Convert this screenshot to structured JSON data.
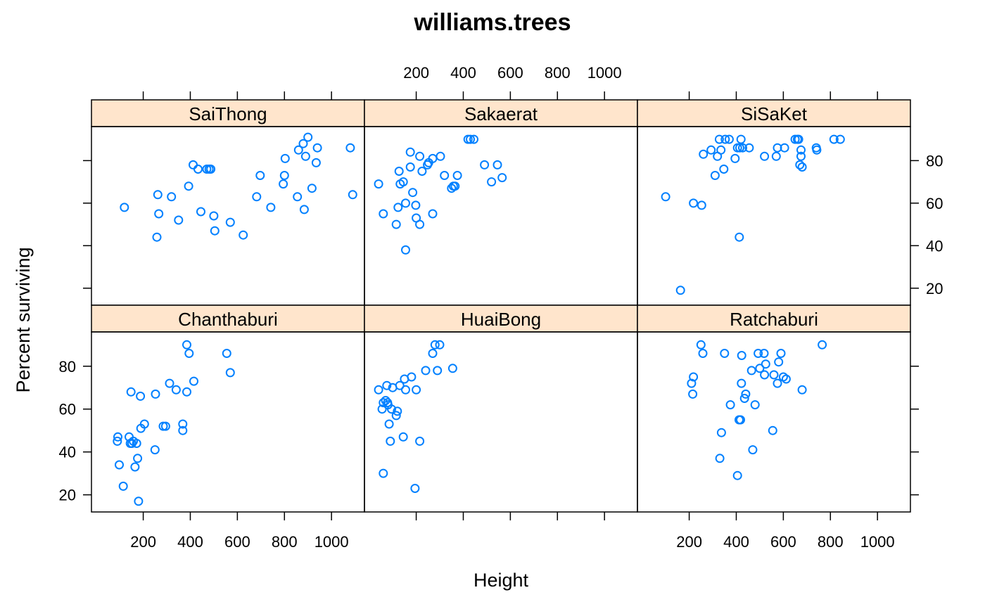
{
  "colors": {
    "point": "#0080ff",
    "strip": "#ffe5cc",
    "frame": "#000000"
  },
  "chart_data": {
    "type": "scatter",
    "title": "williams.trees",
    "xlabel": "Height",
    "ylabel": "Percent surviving",
    "xlim": [
      -20,
      1140
    ],
    "ylim": [
      12,
      96
    ],
    "xticks": [
      200,
      400,
      600,
      800,
      1000
    ],
    "yticks": [
      20,
      40,
      60,
      80
    ],
    "panels": [
      {
        "name": "SaiThong",
        "points": [
          [
            120,
            58
          ],
          [
            258,
            44
          ],
          [
            262,
            64
          ],
          [
            266,
            55
          ],
          [
            320,
            63
          ],
          [
            350,
            52
          ],
          [
            393,
            68
          ],
          [
            412,
            78
          ],
          [
            433,
            76
          ],
          [
            445,
            56
          ],
          [
            470,
            76
          ],
          [
            480,
            76
          ],
          [
            487,
            76
          ],
          [
            500,
            54
          ],
          [
            504,
            47
          ],
          [
            570,
            51
          ],
          [
            625,
            45
          ],
          [
            682,
            63
          ],
          [
            697,
            73
          ],
          [
            742,
            58
          ],
          [
            795,
            69
          ],
          [
            800,
            73
          ],
          [
            803,
            81
          ],
          [
            855,
            63
          ],
          [
            860,
            85
          ],
          [
            880,
            88
          ],
          [
            884,
            57
          ],
          [
            890,
            82
          ],
          [
            900,
            91
          ],
          [
            917,
            67
          ],
          [
            935,
            79
          ],
          [
            940,
            86
          ],
          [
            1080,
            86
          ],
          [
            1090,
            64
          ]
        ]
      },
      {
        "name": "Sakaerat",
        "points": [
          [
            40,
            69
          ],
          [
            60,
            55
          ],
          [
            115,
            50
          ],
          [
            123,
            58
          ],
          [
            127,
            75
          ],
          [
            132,
            69
          ],
          [
            145,
            70
          ],
          [
            155,
            60
          ],
          [
            155,
            38
          ],
          [
            175,
            77
          ],
          [
            175,
            84
          ],
          [
            185,
            65
          ],
          [
            198,
            59
          ],
          [
            200,
            53
          ],
          [
            215,
            50
          ],
          [
            215,
            82
          ],
          [
            225,
            75
          ],
          [
            248,
            78
          ],
          [
            253,
            79
          ],
          [
            270,
            55
          ],
          [
            270,
            81
          ],
          [
            303,
            82
          ],
          [
            320,
            73
          ],
          [
            350,
            67
          ],
          [
            358,
            68
          ],
          [
            365,
            68
          ],
          [
            375,
            73
          ],
          [
            420,
            90
          ],
          [
            430,
            90
          ],
          [
            445,
            90
          ],
          [
            490,
            78
          ],
          [
            520,
            70
          ],
          [
            545,
            78
          ],
          [
            565,
            72
          ]
        ]
      },
      {
        "name": "SiSaKet",
        "points": [
          [
            100,
            63
          ],
          [
            163,
            19
          ],
          [
            218,
            60
          ],
          [
            253,
            59
          ],
          [
            260,
            83
          ],
          [
            293,
            85
          ],
          [
            310,
            73
          ],
          [
            320,
            82
          ],
          [
            328,
            90
          ],
          [
            335,
            85
          ],
          [
            347,
            76
          ],
          [
            353,
            90
          ],
          [
            370,
            90
          ],
          [
            395,
            81
          ],
          [
            405,
            86
          ],
          [
            413,
            44
          ],
          [
            415,
            86
          ],
          [
            420,
            90
          ],
          [
            427,
            86
          ],
          [
            455,
            86
          ],
          [
            520,
            82
          ],
          [
            570,
            82
          ],
          [
            575,
            86
          ],
          [
            605,
            86
          ],
          [
            650,
            90
          ],
          [
            660,
            90
          ],
          [
            665,
            90
          ],
          [
            670,
            78
          ],
          [
            675,
            82
          ],
          [
            675,
            85
          ],
          [
            680,
            77
          ],
          [
            740,
            86
          ],
          [
            742,
            85
          ],
          [
            815,
            90
          ],
          [
            842,
            90
          ]
        ]
      },
      {
        "name": "Chanthaburi",
        "points": [
          [
            90,
            45
          ],
          [
            92,
            47
          ],
          [
            98,
            34
          ],
          [
            115,
            24
          ],
          [
            140,
            47
          ],
          [
            145,
            44
          ],
          [
            148,
            68
          ],
          [
            152,
            44
          ],
          [
            158,
            45
          ],
          [
            165,
            33
          ],
          [
            172,
            44
          ],
          [
            176,
            37
          ],
          [
            180,
            17
          ],
          [
            188,
            66
          ],
          [
            190,
            51
          ],
          [
            205,
            53
          ],
          [
            250,
            41
          ],
          [
            252,
            67
          ],
          [
            285,
            52
          ],
          [
            295,
            52
          ],
          [
            312,
            72
          ],
          [
            340,
            69
          ],
          [
            368,
            53
          ],
          [
            368,
            50
          ],
          [
            385,
            90
          ],
          [
            385,
            68
          ],
          [
            395,
            86
          ],
          [
            415,
            73
          ],
          [
            555,
            86
          ],
          [
            570,
            77
          ]
        ]
      },
      {
        "name": "HuaiBong",
        "points": [
          [
            40,
            69
          ],
          [
            55,
            60
          ],
          [
            60,
            63
          ],
          [
            60,
            30
          ],
          [
            70,
            64
          ],
          [
            75,
            71
          ],
          [
            78,
            63
          ],
          [
            80,
            62
          ],
          [
            85,
            53
          ],
          [
            90,
            45
          ],
          [
            95,
            60
          ],
          [
            100,
            70
          ],
          [
            115,
            57
          ],
          [
            120,
            59
          ],
          [
            130,
            71
          ],
          [
            145,
            47
          ],
          [
            150,
            74
          ],
          [
            155,
            69
          ],
          [
            180,
            75
          ],
          [
            195,
            23
          ],
          [
            200,
            69
          ],
          [
            215,
            45
          ],
          [
            240,
            78
          ],
          [
            270,
            86
          ],
          [
            280,
            90
          ],
          [
            290,
            78
          ],
          [
            300,
            90
          ],
          [
            355,
            79
          ]
        ]
      },
      {
        "name": "Ratchaburi",
        "points": [
          [
            210,
            72
          ],
          [
            215,
            67
          ],
          [
            218,
            75
          ],
          [
            250,
            90
          ],
          [
            258,
            86
          ],
          [
            330,
            37
          ],
          [
            337,
            49
          ],
          [
            350,
            86
          ],
          [
            375,
            62
          ],
          [
            405,
            29
          ],
          [
            412,
            55
          ],
          [
            418,
            55
          ],
          [
            422,
            72
          ],
          [
            423,
            85
          ],
          [
            435,
            65
          ],
          [
            440,
            67
          ],
          [
            465,
            78
          ],
          [
            470,
            41
          ],
          [
            480,
            62
          ],
          [
            493,
            86
          ],
          [
            500,
            79
          ],
          [
            518,
            86
          ],
          [
            520,
            76
          ],
          [
            525,
            81
          ],
          [
            555,
            50
          ],
          [
            560,
            76
          ],
          [
            575,
            72
          ],
          [
            580,
            82
          ],
          [
            590,
            86
          ],
          [
            600,
            75
          ],
          [
            612,
            74
          ],
          [
            680,
            69
          ],
          [
            765,
            90
          ]
        ]
      }
    ]
  }
}
